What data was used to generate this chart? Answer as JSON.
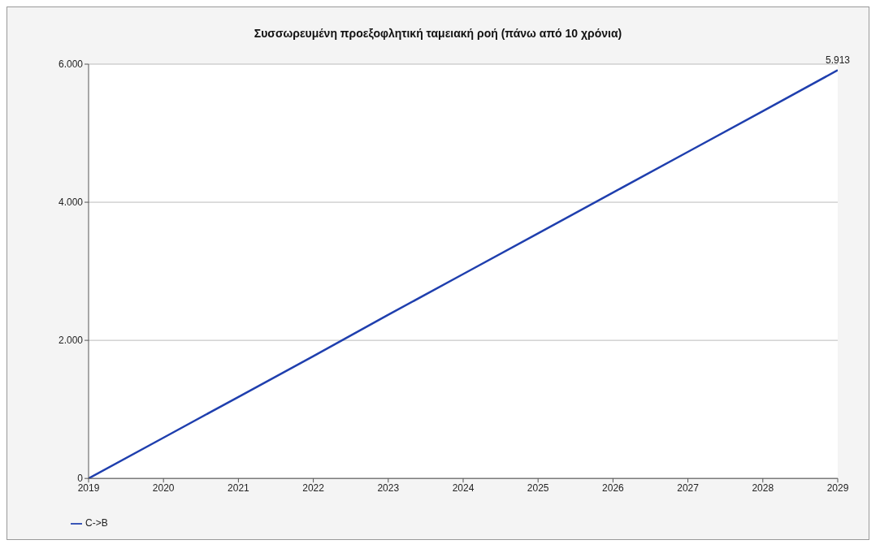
{
  "chart_data": {
    "type": "line",
    "title": "Συσσωρευμένη προεξοφλητική ταμειακή ροή (πάνω από 10 χρόνια)",
    "x": [
      2019,
      2020,
      2021,
      2022,
      2023,
      2024,
      2025,
      2026,
      2027,
      2028,
      2029
    ],
    "xlim": [
      2019,
      2029
    ],
    "xticks": [
      2019,
      2020,
      2021,
      2022,
      2023,
      2024,
      2025,
      2026,
      2027,
      2028,
      2029
    ],
    "ylim": [
      0,
      6000
    ],
    "yticks": [
      0,
      {
        "value": 2000,
        "label": "2.000"
      },
      {
        "value": 4000,
        "label": "4.000"
      },
      {
        "value": 6000,
        "label": "6.000"
      }
    ],
    "series": [
      {
        "name": "C->B",
        "color": "#1f3fae",
        "values": [
          0,
          590,
          1180,
          1770,
          2370,
          2960,
          3550,
          4140,
          4730,
          5320,
          5913
        ],
        "value_labels": [
          null,
          null,
          null,
          null,
          null,
          null,
          null,
          null,
          null,
          null,
          "5.913"
        ]
      }
    ],
    "grid": "y",
    "legend": "bottom left",
    "marker": "none",
    "line_style": "solid"
  }
}
